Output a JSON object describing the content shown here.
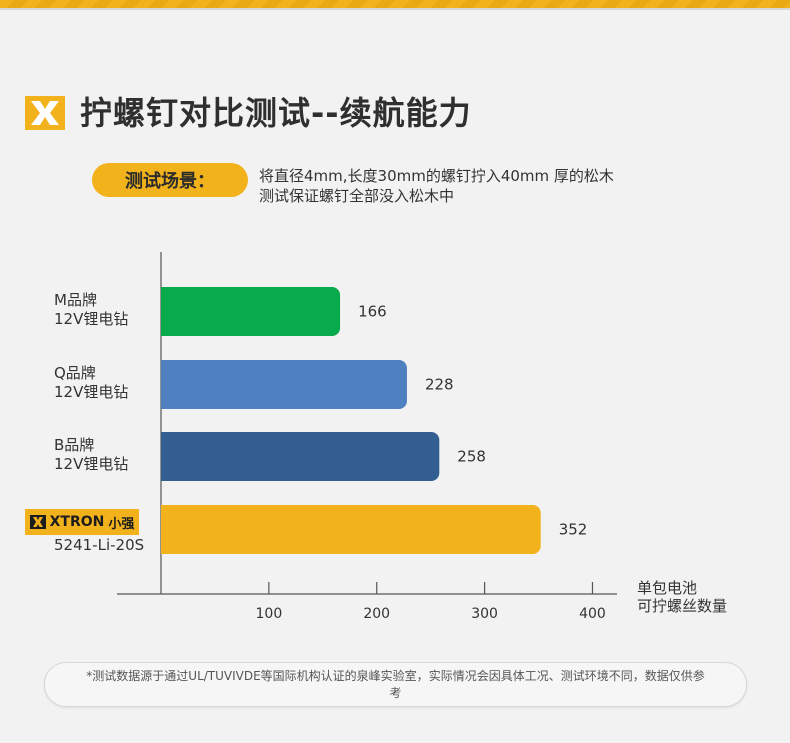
{
  "header": {
    "title": "拧螺钉对比测试--续航能力"
  },
  "scenario": {
    "label": "测试场景：",
    "line1": "将直径4mm,长度30mm的螺钉拧入40mm 厚的松木",
    "line2": "测试保证螺钉全部没入松木中"
  },
  "colors": {
    "accent": "#f1b21c",
    "green": "#07ab4b",
    "lightblue": "#4f80bf",
    "darkblue": "#335e92"
  },
  "chart_data": {
    "type": "bar",
    "orientation": "horizontal",
    "categories": [
      {
        "line1": "M品牌",
        "line2": "12V锂电钻"
      },
      {
        "line1": "Q品牌",
        "line2": "12V锂电钻"
      },
      {
        "line1": "B品牌",
        "line2": "12V锂电钻"
      },
      {
        "line1": "XTRON 小强",
        "line2": "5241-Li-20S"
      }
    ],
    "values": [
      166,
      228,
      258,
      352
    ],
    "value_labels": [
      "166",
      "228",
      "258",
      "352"
    ],
    "bar_colors": [
      "#07ab4b",
      "#4f80bf",
      "#335e92",
      "#f1b21c"
    ],
    "xlim": [
      0,
      420
    ],
    "xticks": [
      100,
      200,
      300,
      400
    ],
    "xtick_labels": [
      "100",
      "200",
      "300",
      "400"
    ],
    "xlabel_line1": "单包电池",
    "xlabel_line2": "可拧螺丝数量",
    "grid": false
  },
  "brand": {
    "word": "XTRON",
    "cn": "小强"
  },
  "footnote": "*测试数据源于通过UL/TUVIVDE等国际机构认证的泉峰实验室，实际情况会因具体工况、测试环境不同，数据仅供参考"
}
